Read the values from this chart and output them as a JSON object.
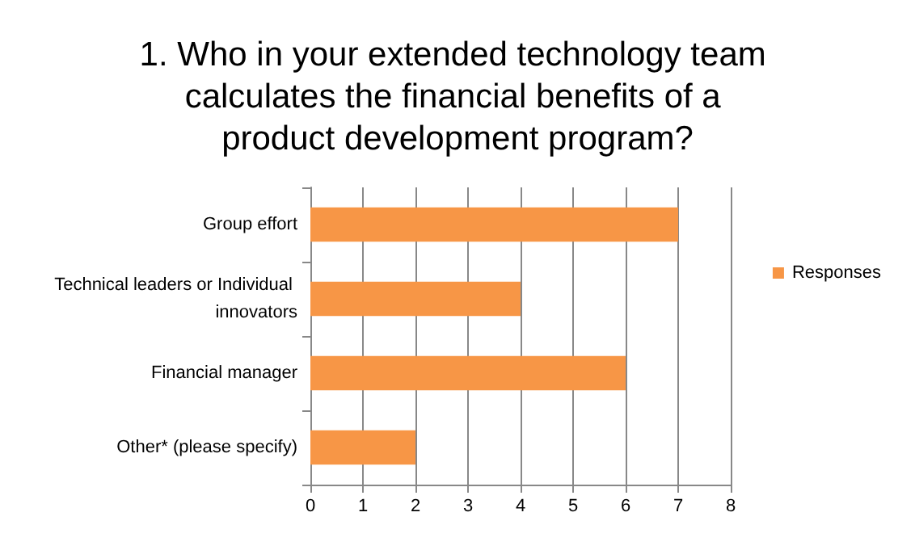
{
  "chart_data": {
    "type": "bar",
    "orientation": "horizontal",
    "title": "1. Who in your extended technology team calculates the financial benefits of a product development program?",
    "categories": [
      "Group effort",
      "Technical leaders or Individual innovators",
      "Financial manager",
      "Other* (please specify)"
    ],
    "series": [
      {
        "name": "Responses",
        "color": "#f79646",
        "values": [
          7,
          4,
          6,
          2
        ]
      }
    ],
    "xlim": [
      0,
      8
    ],
    "xticks": [
      0,
      1,
      2,
      3,
      4,
      5,
      6,
      7,
      8
    ],
    "grid": "x",
    "legend": "right"
  }
}
